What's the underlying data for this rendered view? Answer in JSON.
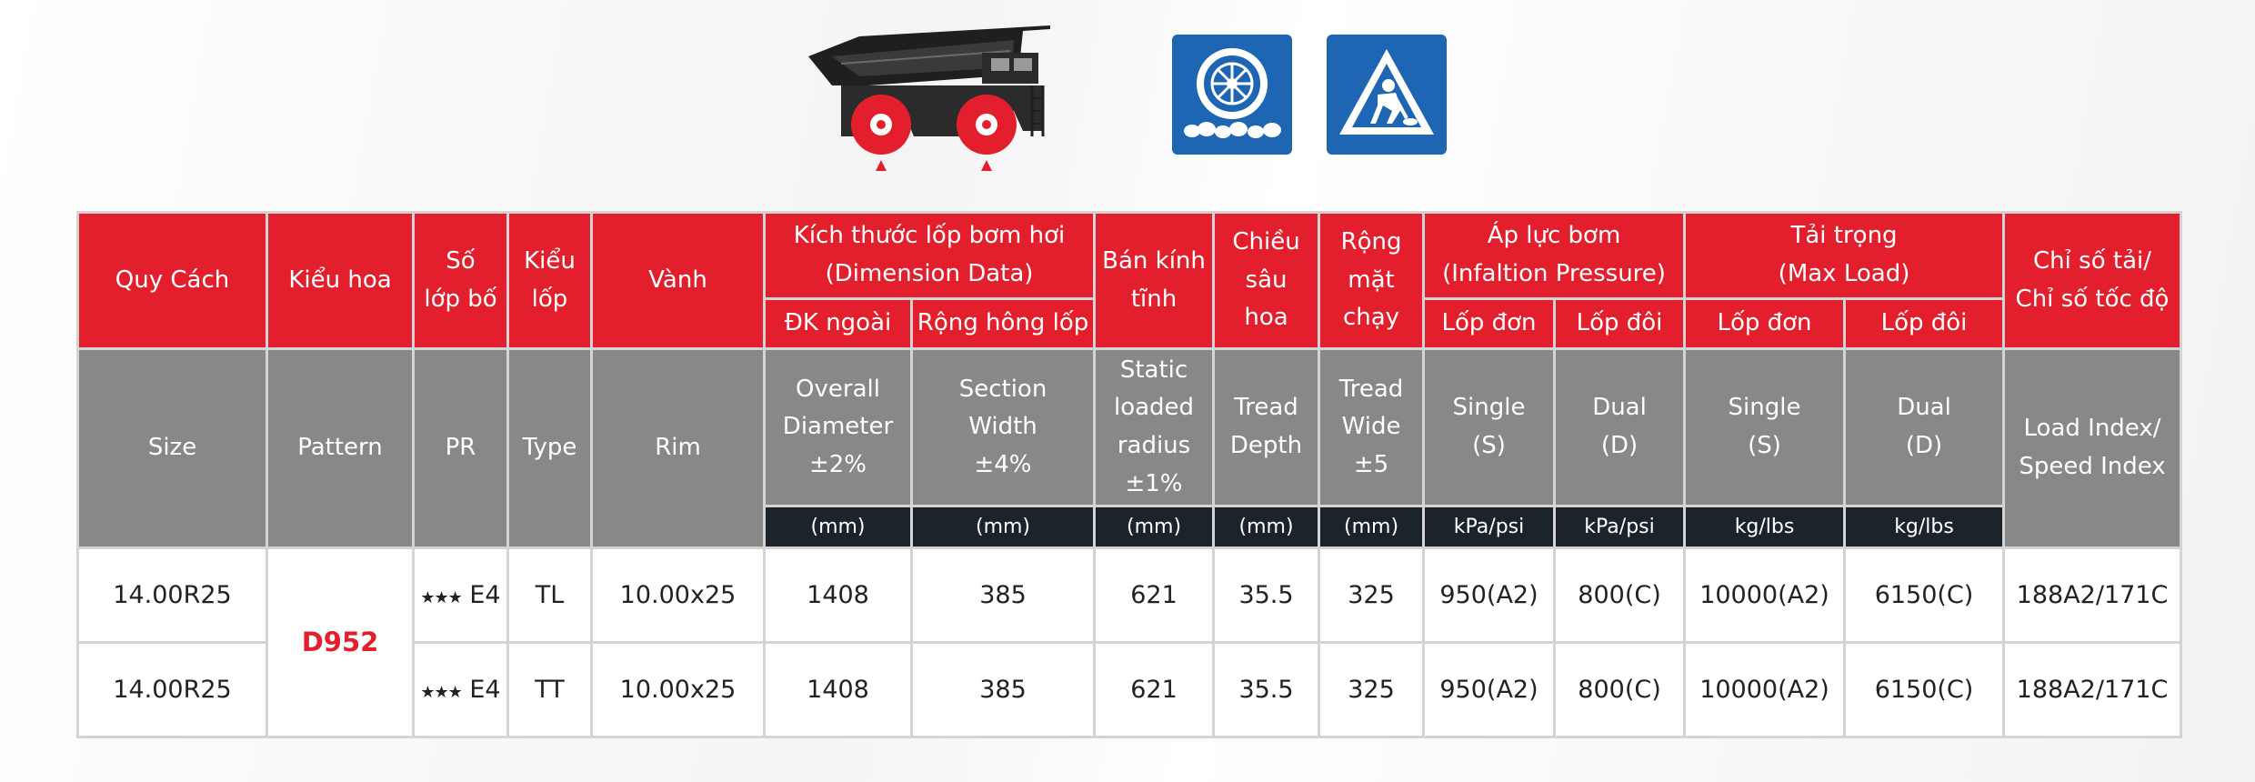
{
  "icons": {
    "vehicle": "mining-dump-truck-icon",
    "terrain": "rocky-terrain-tire-icon",
    "usage": "road-work-warning-icon",
    "accent_red": "#e41f2d",
    "sign_blue": "#1e66b3"
  },
  "header_vi": {
    "size": "Quy Cách",
    "pattern": "Kiểu hoa",
    "pr": "Số\nlớp bố",
    "type": "Kiểu\nlốp",
    "rim": "Vành",
    "dimension": "Kích thước lốp bơm hơi\n(Dimension Data)",
    "overall_diameter": "ĐK ngoài",
    "section_width": "Rộng hông lốp",
    "static_radius": "Bán kính\ntĩnh",
    "tread_depth": "Chiều\nsâu\nhoa",
    "tread_wide": "Rộng\nmặt\nchạy",
    "pressure": "Áp lực bơm\n(Infaltion Pressure)",
    "pressure_single": "Lốp đơn",
    "pressure_dual": "Lốp đôi",
    "load": "Tải trọng\n(Max Load)",
    "load_single": "Lốp đơn",
    "load_dual": "Lốp đôi",
    "index": "Chỉ số tải/\nChỉ số tốc độ"
  },
  "header_en": {
    "size": "Size",
    "pattern": "Pattern",
    "pr": "PR",
    "type": "Type",
    "rim": "Rim",
    "overall_diameter": "Overall\nDiameter\n±2%",
    "section_width": "Section\nWidth\n±4%",
    "static_radius": "Static\nloaded\nradius\n±1%",
    "tread_depth": "Tread\nDepth",
    "tread_wide": "Tread\nWide\n±5",
    "pressure_single": "Single\n(S)",
    "pressure_dual": "Dual\n(D)",
    "load_single": "Single\n(S)",
    "load_dual": "Dual\n(D)",
    "index": "Load Index/\nSpeed Index"
  },
  "units": {
    "overall_diameter": "(mm)",
    "section_width": "(mm)",
    "static_radius": "(mm)",
    "tread_depth": "(mm)",
    "tread_wide": "(mm)",
    "pressure_single": "kPa/psi",
    "pressure_dual": "kPa/psi",
    "load_single": "kg/lbs",
    "load_dual": "kg/lbs"
  },
  "pattern_name": "D952",
  "rows": [
    {
      "size": "14.00R25",
      "stars": "★★★",
      "pr": "E4",
      "type": "TL",
      "rim": "10.00x25",
      "overall_diameter": "1408",
      "section_width": "385",
      "static_radius": "621",
      "tread_depth": "35.5",
      "tread_wide": "325",
      "pressure_single": "950(A2)",
      "pressure_dual": "800(C)",
      "load_single": "10000(A2)",
      "load_dual": "6150(C)",
      "index": "188A2/171C"
    },
    {
      "size": "14.00R25",
      "stars": "★★★",
      "pr": "E4",
      "type": "TT",
      "rim": "10.00x25",
      "overall_diameter": "1408",
      "section_width": "385",
      "static_radius": "621",
      "tread_depth": "35.5",
      "tread_wide": "325",
      "pressure_single": "950(A2)",
      "pressure_dual": "800(C)",
      "load_single": "10000(A2)",
      "load_dual": "6150(C)",
      "index": "188A2/171C"
    }
  ]
}
